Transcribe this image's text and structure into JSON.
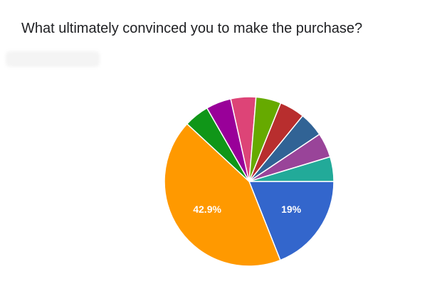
{
  "question": {
    "title": "What ultimately convinced you to make the purchase?"
  },
  "chart_data": {
    "type": "pie",
    "title": "What ultimately convinced you to make the purchase?",
    "slices": [
      {
        "value": 19.0,
        "label": "19%",
        "color": "#3366cc"
      },
      {
        "value": 42.9,
        "label": "42.9%",
        "color": "#ff9900"
      },
      {
        "value": 4.8,
        "label": "",
        "color": "#109618"
      },
      {
        "value": 4.8,
        "label": "",
        "color": "#990099"
      },
      {
        "value": 4.8,
        "label": "",
        "color": "#dd4477"
      },
      {
        "value": 4.8,
        "label": "",
        "color": "#66aa00"
      },
      {
        "value": 4.8,
        "label": "",
        "color": "#b82e2e"
      },
      {
        "value": 4.7,
        "label": "",
        "color": "#316395"
      },
      {
        "value": 4.7,
        "label": "",
        "color": "#994499"
      },
      {
        "value": 4.7,
        "label": "",
        "color": "#22aa99"
      }
    ]
  }
}
